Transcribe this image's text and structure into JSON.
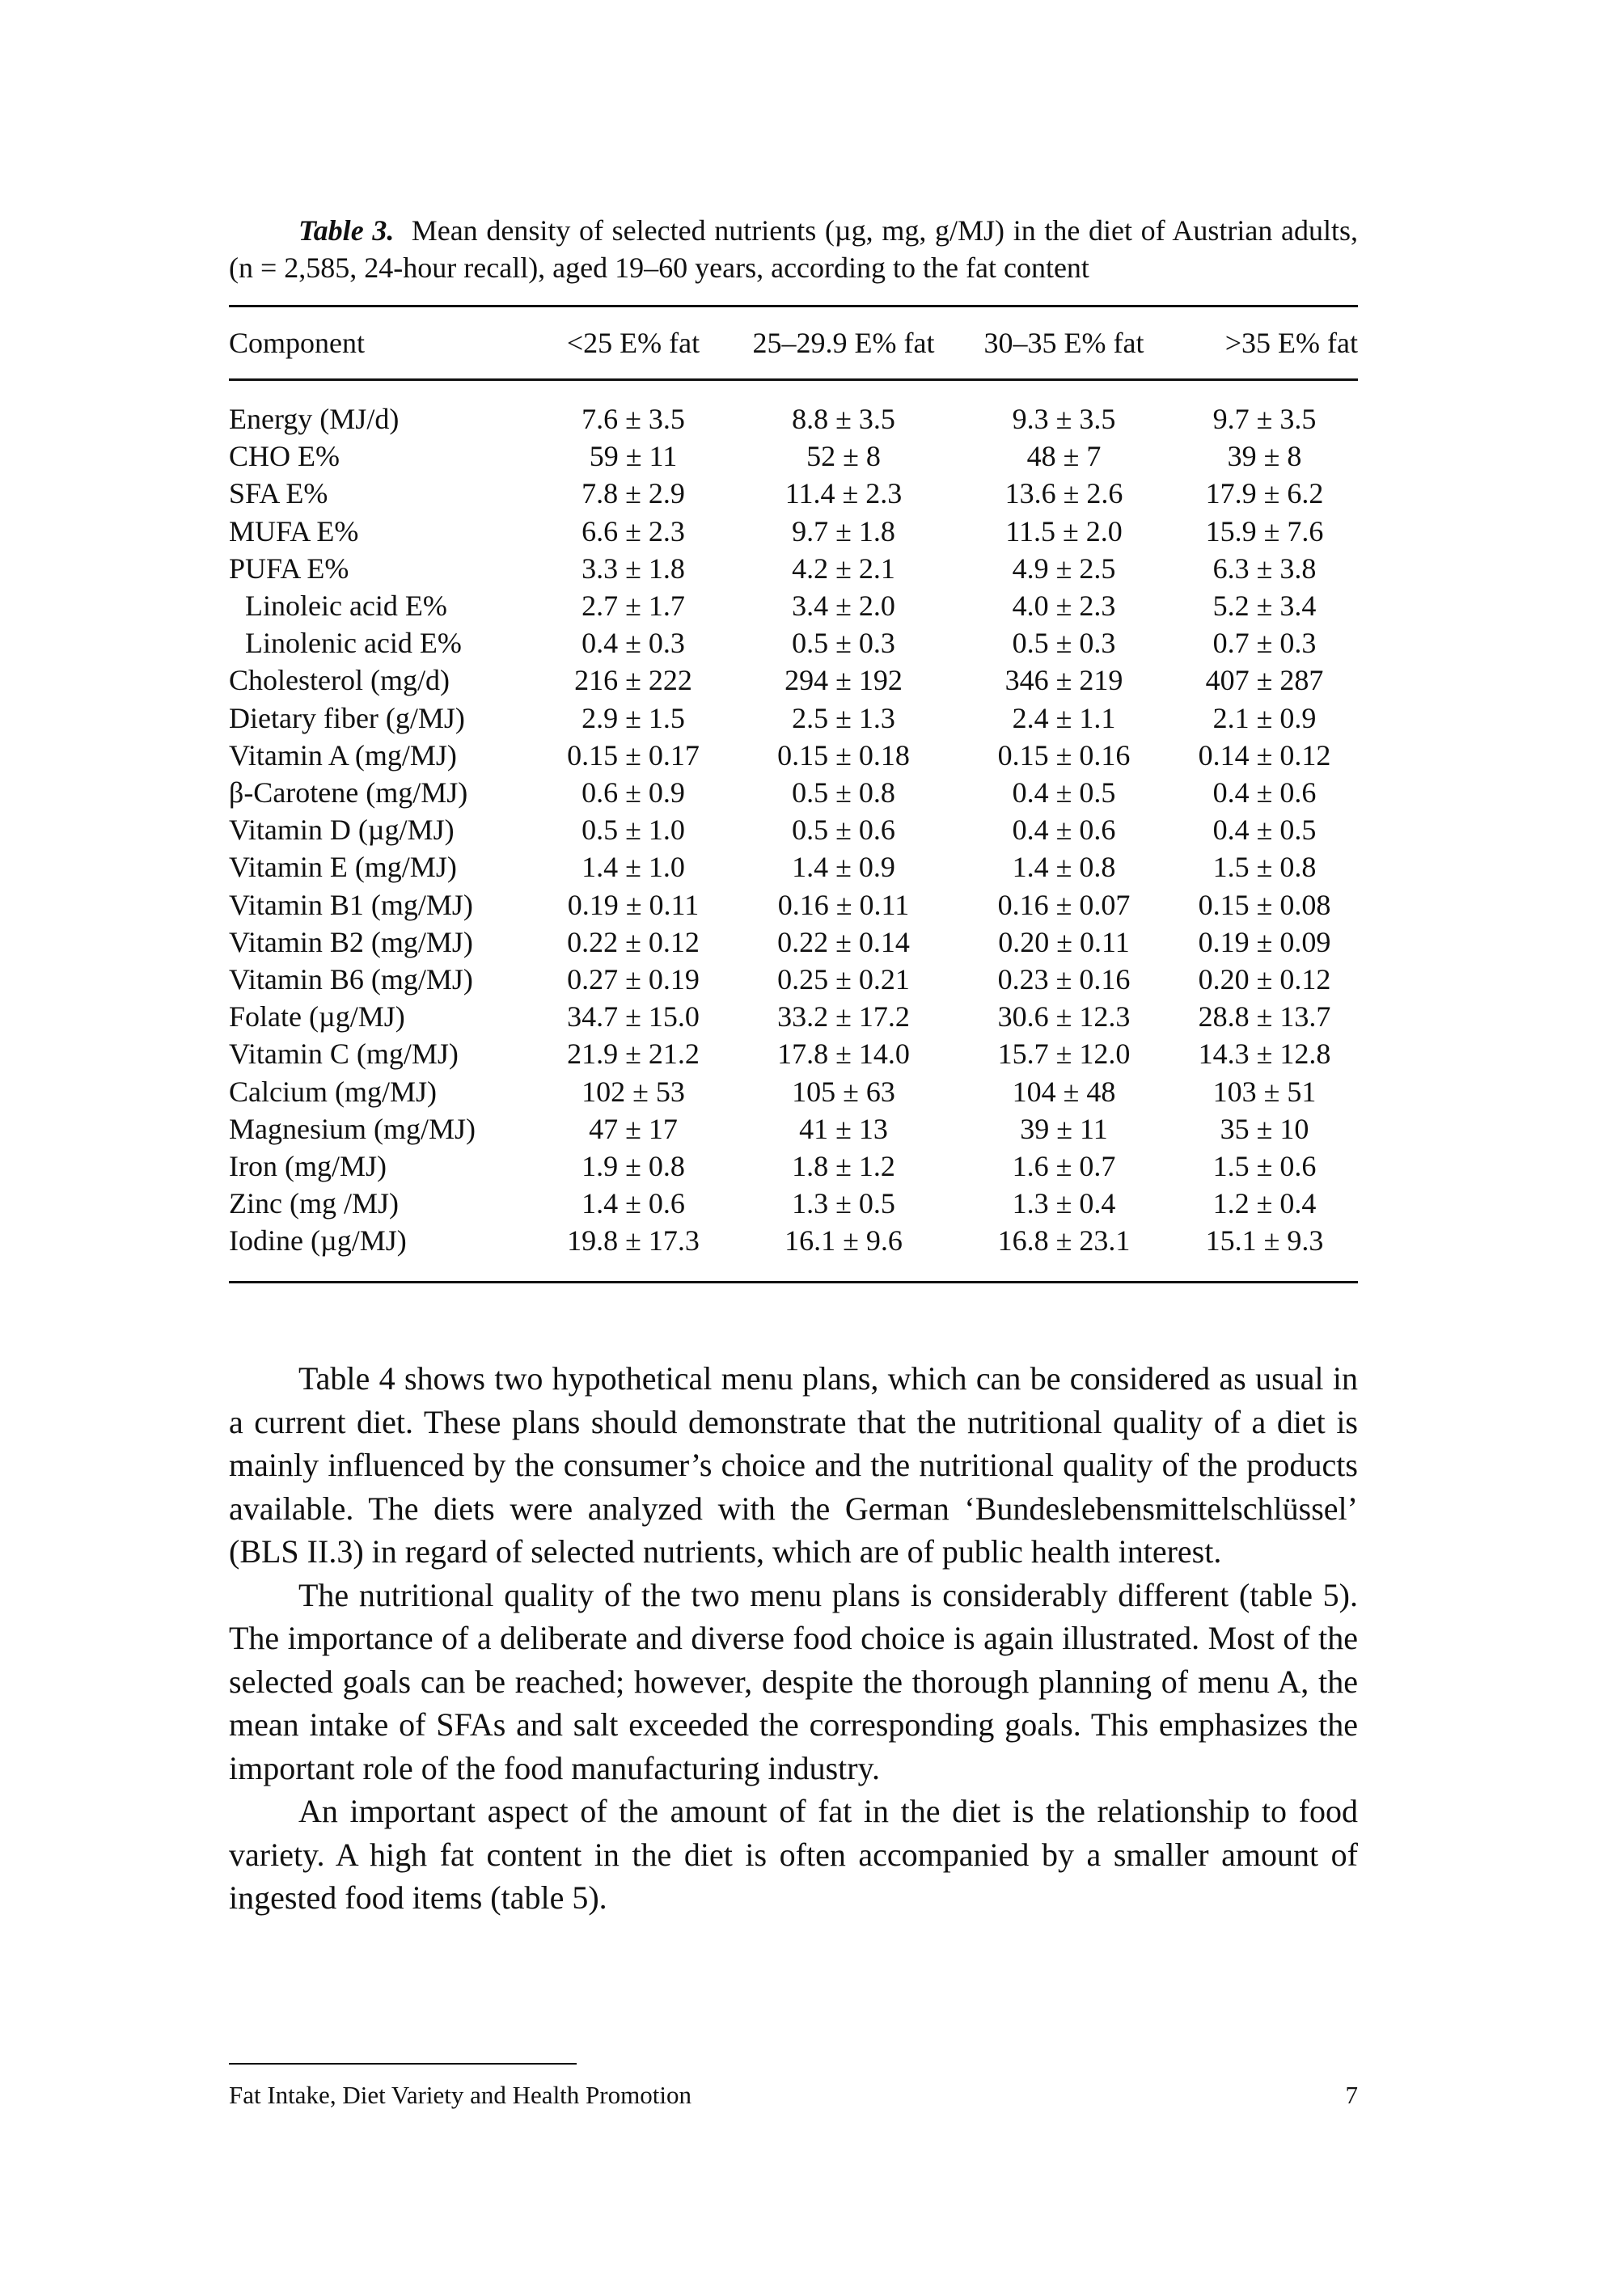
{
  "table": {
    "label": "Table 3.",
    "caption": "Mean density of selected nutrients (µg, mg, g/MJ) in the diet of Austrian adults, (n = 2,585, 24-hour recall), aged 19–60 years, according to the fat content",
    "headers": [
      "Component",
      "<25 E% fat",
      "25–29.9 E% fat",
      "30–35 E% fat",
      ">35 E% fat"
    ],
    "rows": [
      [
        "Energy (MJ/d)",
        "7.6 ± 3.5",
        "8.8 ± 3.5",
        "9.3 ± 3.5",
        "9.7 ± 3.5"
      ],
      [
        "CHO E%",
        "59 ± 11",
        "52 ± 8",
        "48 ± 7",
        "39 ± 8"
      ],
      [
        "SFA E%",
        "7.8 ± 2.9",
        "11.4 ± 2.3",
        "13.6 ± 2.6",
        "17.9 ± 6.2"
      ],
      [
        "MUFA E%",
        "6.6 ± 2.3",
        "9.7 ± 1.8",
        "11.5 ± 2.0",
        "15.9 ± 7.6"
      ],
      [
        "PUFA E%",
        "3.3 ± 1.8",
        "4.2 ± 2.1",
        "4.9 ± 2.5",
        "6.3 ± 3.8"
      ],
      [
        "Linoleic acid E%",
        "2.7 ± 1.7",
        "3.4 ± 2.0",
        "4.0 ± 2.3",
        "5.2 ± 3.4"
      ],
      [
        "Linolenic acid E%",
        "0.4 ± 0.3",
        "0.5 ± 0.3",
        "0.5 ± 0.3",
        "0.7 ± 0.3"
      ],
      [
        "Cholesterol (mg/d)",
        "216 ± 222",
        "294 ± 192",
        "346 ± 219",
        "407 ± 287"
      ],
      [
        "Dietary fiber (g/MJ)",
        "2.9 ± 1.5",
        "2.5 ± 1.3",
        "2.4 ± 1.1",
        "2.1 ± 0.9"
      ],
      [
        "Vitamin A (mg/MJ)",
        "0.15 ± 0.17",
        "0.15 ± 0.18",
        "0.15 ± 0.16",
        "0.14 ± 0.12"
      ],
      [
        "β-Carotene (mg/MJ)",
        "0.6 ± 0.9",
        "0.5 ± 0.8",
        "0.4 ± 0.5",
        "0.4 ± 0.6"
      ],
      [
        "Vitamin D (µg/MJ)",
        "0.5 ± 1.0",
        "0.5 ± 0.6",
        "0.4 ± 0.6",
        "0.4 ± 0.5"
      ],
      [
        "Vitamin E (mg/MJ)",
        "1.4 ± 1.0",
        "1.4 ± 0.9",
        "1.4 ± 0.8",
        "1.5 ± 0.8"
      ],
      [
        "Vitamin B1 (mg/MJ)",
        "0.19 ± 0.11",
        "0.16 ± 0.11",
        "0.16 ± 0.07",
        "0.15 ± 0.08"
      ],
      [
        "Vitamin B2 (mg/MJ)",
        "0.22 ± 0.12",
        "0.22 ± 0.14",
        "0.20 ± 0.11",
        "0.19 ± 0.09"
      ],
      [
        "Vitamin B6 (mg/MJ)",
        "0.27 ± 0.19",
        "0.25 ± 0.21",
        "0.23 ± 0.16",
        "0.20 ± 0.12"
      ],
      [
        "Folate (µg/MJ)",
        "34.7 ± 15.0",
        "33.2 ± 17.2",
        "30.6 ± 12.3",
        "28.8 ± 13.7"
      ],
      [
        "Vitamin C (mg/MJ)",
        "21.9 ± 21.2",
        "17.8 ± 14.0",
        "15.7 ± 12.0",
        "14.3 ± 12.8"
      ],
      [
        "Calcium (mg/MJ)",
        "102 ± 53",
        "105 ± 63",
        "104 ± 48",
        "103 ± 51"
      ],
      [
        "Magnesium (mg/MJ)",
        "47 ± 17",
        "41 ± 13",
        "39 ± 11",
        "35 ± 10"
      ],
      [
        "Iron (mg/MJ)",
        "1.9 ± 0.8",
        "1.8 ± 1.2",
        "1.6 ± 0.7",
        "1.5 ± 0.6"
      ],
      [
        "Zinc (mg /MJ)",
        "1.4 ± 0.6",
        "1.3 ± 0.5",
        "1.3 ± 0.4",
        "1.2 ± 0.4"
      ],
      [
        "Iodine (µg/MJ)",
        "19.8 ± 17.3",
        "16.1 ± 9.6",
        "16.8 ± 23.1",
        "15.1 ± 9.3"
      ]
    ]
  },
  "body": {
    "paragraphs": [
      "Table 4 shows two hypothetical menu plans, which can be considered as usual in a current diet. These plans should demonstrate that the nutritional quality of a diet is mainly influenced by the consumer’s choice and the nutritional quality of the products available. The diets were analyzed with the German ‘Bundeslebensmittelschlüssel’ (BLS II.3) in regard of selected nutrients, which are of public health interest.",
      "The nutritional quality of the two menu plans is considerably different (table 5). The importance of a deliberate and diverse food choice is again illustrated. Most of the selected goals can be reached; however, despite the thorough planning of menu A, the mean intake of SFAs and salt exceeded the corresponding goals. This emphasizes the important role of the food manufacturing industry.",
      "An important aspect of the amount of fat in the diet is the relationship to food variety. A high fat content in the diet is often accompanied by a smaller amount of ingested food items (table 5)."
    ]
  },
  "footer": {
    "running_title": "Fat Intake, Diet Variety and Health Promotion",
    "page_number": "7"
  }
}
